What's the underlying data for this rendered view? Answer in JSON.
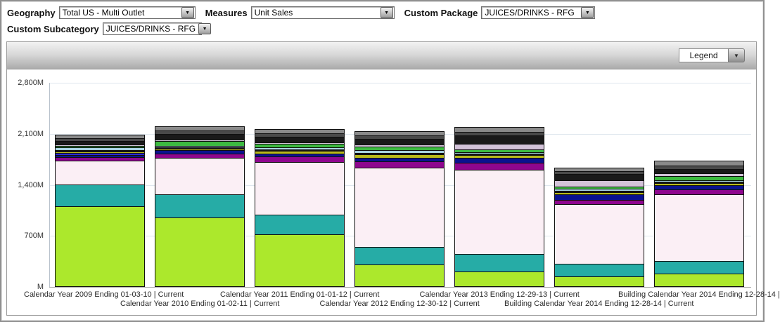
{
  "filters": {
    "row1": [
      {
        "label": "Geography",
        "value": "Total US - Multi Outlet"
      },
      {
        "label": "Measures",
        "value": "Unit Sales"
      },
      {
        "label": "Custom Package",
        "value": "JUICES/DRINKS - RFG"
      }
    ],
    "row2": [
      {
        "label": "Custom Subcategory",
        "value": "JUICES/DRINKS - RFG"
      }
    ]
  },
  "chart_panel": {
    "legend_button_label": "Legend"
  },
  "chart_data": {
    "type": "bar",
    "stacked": true,
    "title": "",
    "measure_shown": "Unit Sales",
    "y_ticks": [
      "2,800M",
      "2,100M",
      "1,400M",
      "700M",
      "M"
    ],
    "ylim": [
      0,
      2800
    ],
    "grid": "horizontal",
    "legend_position": "collapsed-dropdown-top-right",
    "categories": [
      "Calendar Year 2009 Ending 01-03-10 | Current",
      "Calendar Year 2010 Ending 01-02-11 | Current",
      "Calendar Year 2011 Ending 01-01-12 | Current",
      "Calendar Year 2012 Ending 12-30-12 | Current",
      "Calendar Year 2013 Ending 12-29-13 | Current",
      "Building Calendar Year 2014 Ending 12-28-14 | Current",
      "Building Calendar Year 2014 Ending 12-28-14 |"
    ],
    "bar_totals_approx_M": [
      2059,
      2157,
      2135,
      2100,
      2184,
      1608,
      1701
    ],
    "series": [
      {
        "name": "segment-chartreuse",
        "color": "#ace82c",
        "values": [
          1100,
          943,
          715,
          298,
          202,
          138,
          170
        ]
      },
      {
        "name": "segment-teal",
        "color": "#26aca6",
        "values": [
          300,
          317,
          273,
          241,
          241,
          177,
          176
        ]
      },
      {
        "name": "segment-pale-pink",
        "color": "#fbeff5",
        "values": [
          325,
          497,
          722,
          1090,
          1154,
          818,
          914
        ]
      },
      {
        "name": "segment-purple",
        "color": "#8e068e",
        "values": [
          48,
          60,
          75,
          90,
          100,
          55,
          70
        ]
      },
      {
        "name": "segment-navy",
        "color": "#0a128f",
        "values": [
          26,
          45,
          40,
          45,
          70,
          75,
          55
        ]
      },
      {
        "name": "segment-royal-blue",
        "color": "#2b2bd5",
        "values": [
          30,
          0,
          0,
          0,
          0,
          0,
          0
        ]
      },
      {
        "name": "segment-olive-yellow",
        "color": "#b9b91b",
        "values": [
          22,
          18,
          35,
          45,
          35,
          30,
          25
        ]
      },
      {
        "name": "segment-black-thin",
        "color": "#141414",
        "values": [
          10,
          8,
          8,
          10,
          10,
          10,
          8
        ]
      },
      {
        "name": "segment-light-blue",
        "color": "#a9d3e2",
        "values": [
          40,
          20,
          30,
          35,
          20,
          25,
          15
        ]
      },
      {
        "name": "segment-green",
        "color": "#3dba41",
        "values": [
          18,
          65,
          45,
          50,
          40,
          25,
          60
        ]
      },
      {
        "name": "segment-lavender",
        "color": "#d3c3d9",
        "values": [
          8,
          10,
          12,
          30,
          80,
          90,
          40
        ]
      },
      {
        "name": "segment-black",
        "color": "#1a1a1a",
        "values": [
          50,
          75,
          80,
          75,
          120,
          90,
          60
        ]
      },
      {
        "name": "segment-dim-gray",
        "color": "#4a4a4a",
        "values": [
          40,
          50,
          50,
          45,
          50,
          40,
          50
        ]
      },
      {
        "name": "segment-gray",
        "color": "#8a8a8a",
        "values": [
          42,
          49,
          50,
          46,
          62,
          35,
          58
        ]
      }
    ]
  }
}
